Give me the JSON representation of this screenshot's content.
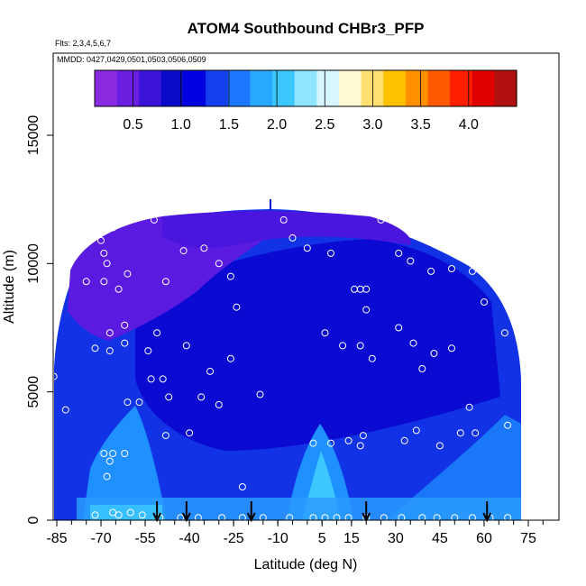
{
  "chart_data": {
    "type": "heatmap",
    "title": "ATOM4 Southbound CHBr3_PFP",
    "flights_label": "Flts: 2,3,4,5,6,7",
    "dates_label": "MMDD: 0427,0429,0501,0503,0506,0509",
    "xlabel": "Latitude (deg N)",
    "ylabel": "Altitude (m)",
    "xlim": [
      -87,
      82
    ],
    "ylim": [
      0,
      17500
    ],
    "x_ticks": [
      -85,
      -70,
      -55,
      -40,
      -25,
      -10,
      5,
      15,
      30,
      45,
      60,
      75
    ],
    "x_tick_labels": [
      "-85",
      "-70",
      "-55",
      "-40",
      "-25",
      "-10",
      "5",
      "15",
      "30",
      "45",
      "60",
      "75"
    ],
    "y_ticks": [
      0,
      5000,
      10000,
      15000
    ],
    "y_tick_labels": [
      "0",
      "5000",
      "10000",
      "15000"
    ],
    "colorbar": {
      "min": 0.1,
      "max": 4.5,
      "ticks": [
        0.5,
        1.0,
        1.5,
        2.0,
        2.5,
        3.0,
        3.5,
        4.0
      ],
      "tick_labels": [
        "0.5",
        "1.0",
        "1.5",
        "2.0",
        "2.5",
        "3.0",
        "3.5",
        "4.0"
      ],
      "colors": [
        "#8a2be2",
        "#6a1fe0",
        "#3b12d8",
        "#0a0ac8",
        "#0000e0",
        "#1440f0",
        "#1e78ff",
        "#28a8ff",
        "#3cc8ff",
        "#8fe4ff",
        "#d8f6ff",
        "#fff8d0",
        "#ffe070",
        "#ffc000",
        "#ff9000",
        "#ff5a00",
        "#ff1e00",
        "#e00000",
        "#b01010"
      ]
    },
    "field_colors": {
      "purple": "#5a1ae0",
      "deep_blue": "#0a0ad2",
      "blue": "#1232e6",
      "light_blue": "#1e90ff",
      "cyan": "#3cc8ff"
    },
    "sample_points": [
      {
        "lat": -86,
        "alt": 5600
      },
      {
        "lat": -82,
        "alt": 4300
      },
      {
        "lat": -83,
        "alt": 9600
      },
      {
        "lat": -75,
        "alt": 9300
      },
      {
        "lat": -69,
        "alt": 9300
      },
      {
        "lat": -68,
        "alt": 10000
      },
      {
        "lat": -69,
        "alt": 10400
      },
      {
        "lat": -64,
        "alt": 9000
      },
      {
        "lat": -61,
        "alt": 9600
      },
      {
        "lat": -66,
        "alt": 11400
      },
      {
        "lat": -70,
        "alt": 10900
      },
      {
        "lat": -52,
        "alt": 11700
      },
      {
        "lat": -42,
        "alt": 10500
      },
      {
        "lat": -35,
        "alt": 10600
      },
      {
        "lat": -30,
        "alt": 10000
      },
      {
        "lat": -48,
        "alt": 9300
      },
      {
        "lat": -26,
        "alt": 9500
      },
      {
        "lat": -24,
        "alt": 8300
      },
      {
        "lat": -62,
        "alt": 7600
      },
      {
        "lat": -67,
        "alt": 7300
      },
      {
        "lat": -72,
        "alt": 6700
      },
      {
        "lat": -67,
        "alt": 6600
      },
      {
        "lat": -62,
        "alt": 6900
      },
      {
        "lat": -54,
        "alt": 6600
      },
      {
        "lat": -51,
        "alt": 7300
      },
      {
        "lat": -41,
        "alt": 6800
      },
      {
        "lat": -53,
        "alt": 5500
      },
      {
        "lat": -49,
        "alt": 5500
      },
      {
        "lat": -47,
        "alt": 4800
      },
      {
        "lat": -40,
        "alt": 3400
      },
      {
        "lat": -48,
        "alt": 3300
      },
      {
        "lat": -36,
        "alt": 4800
      },
      {
        "lat": -33,
        "alt": 5800
      },
      {
        "lat": -30,
        "alt": 4500
      },
      {
        "lat": -26,
        "alt": 6300
      },
      {
        "lat": -16,
        "alt": 4900
      },
      {
        "lat": -61,
        "alt": 4600
      },
      {
        "lat": -57,
        "alt": 4600
      },
      {
        "lat": -69,
        "alt": 2600
      },
      {
        "lat": -66,
        "alt": 2600
      },
      {
        "lat": -67,
        "alt": 2300
      },
      {
        "lat": -62,
        "alt": 2600
      },
      {
        "lat": -68,
        "alt": 1700
      },
      {
        "lat": -22,
        "alt": 1300
      },
      {
        "lat": -8,
        "alt": 11700
      },
      {
        "lat": -5,
        "alt": 11000
      },
      {
        "lat": 0,
        "alt": 10600
      },
      {
        "lat": 8,
        "alt": 10400
      },
      {
        "lat": 16,
        "alt": 9000
      },
      {
        "lat": 18,
        "alt": 9000
      },
      {
        "lat": 20,
        "alt": 9000
      },
      {
        "lat": 20,
        "alt": 8200
      },
      {
        "lat": 25,
        "alt": 11700
      },
      {
        "lat": 31,
        "alt": 10400
      },
      {
        "lat": 35,
        "alt": 10100
      },
      {
        "lat": 42,
        "alt": 9700
      },
      {
        "lat": 49,
        "alt": 9800
      },
      {
        "lat": 56,
        "alt": 9700
      },
      {
        "lat": 60,
        "alt": 8500
      },
      {
        "lat": 6,
        "alt": 7300
      },
      {
        "lat": 12,
        "alt": 6800
      },
      {
        "lat": 18,
        "alt": 6800
      },
      {
        "lat": 22,
        "alt": 6300
      },
      {
        "lat": 31,
        "alt": 7500
      },
      {
        "lat": 36,
        "alt": 6900
      },
      {
        "lat": 43,
        "alt": 6500
      },
      {
        "lat": 49,
        "alt": 6700
      },
      {
        "lat": 39,
        "alt": 5900
      },
      {
        "lat": 55,
        "alt": 4400
      },
      {
        "lat": 67,
        "alt": 7300
      },
      {
        "lat": 68,
        "alt": 3700
      },
      {
        "lat": 2,
        "alt": 3000
      },
      {
        "lat": 8,
        "alt": 3000
      },
      {
        "lat": 14,
        "alt": 3100
      },
      {
        "lat": 18,
        "alt": 2900
      },
      {
        "lat": 19,
        "alt": 3300
      },
      {
        "lat": 33,
        "alt": 3100
      },
      {
        "lat": 37,
        "alt": 3500
      },
      {
        "lat": 45,
        "alt": 2900
      },
      {
        "lat": 52,
        "alt": 3400
      },
      {
        "lat": 57,
        "alt": 3400
      },
      {
        "lat": -72,
        "alt": 200
      },
      {
        "lat": -66,
        "alt": 300
      },
      {
        "lat": -64,
        "alt": 200
      },
      {
        "lat": -60,
        "alt": 300
      },
      {
        "lat": -56,
        "alt": 200
      },
      {
        "lat": -50,
        "alt": 100
      },
      {
        "lat": -43,
        "alt": 100
      },
      {
        "lat": -37,
        "alt": 100
      },
      {
        "lat": -29,
        "alt": 100
      },
      {
        "lat": -22,
        "alt": 100
      },
      {
        "lat": -15,
        "alt": 100
      },
      {
        "lat": -6,
        "alt": 100
      },
      {
        "lat": 2,
        "alt": 100
      },
      {
        "lat": 6,
        "alt": 100
      },
      {
        "lat": 10,
        "alt": 100
      },
      {
        "lat": 14,
        "alt": 100
      },
      {
        "lat": 20,
        "alt": 100
      },
      {
        "lat": 26,
        "alt": 100
      },
      {
        "lat": 32,
        "alt": 100
      },
      {
        "lat": 39,
        "alt": 100
      },
      {
        "lat": 44,
        "alt": 100
      },
      {
        "lat": 50,
        "alt": 100
      },
      {
        "lat": 56,
        "alt": 100
      },
      {
        "lat": 62,
        "alt": 100
      },
      {
        "lat": 68,
        "alt": 100
      }
    ],
    "marker_latitudes": [
      -51,
      -41,
      -19,
      20,
      61
    ]
  }
}
